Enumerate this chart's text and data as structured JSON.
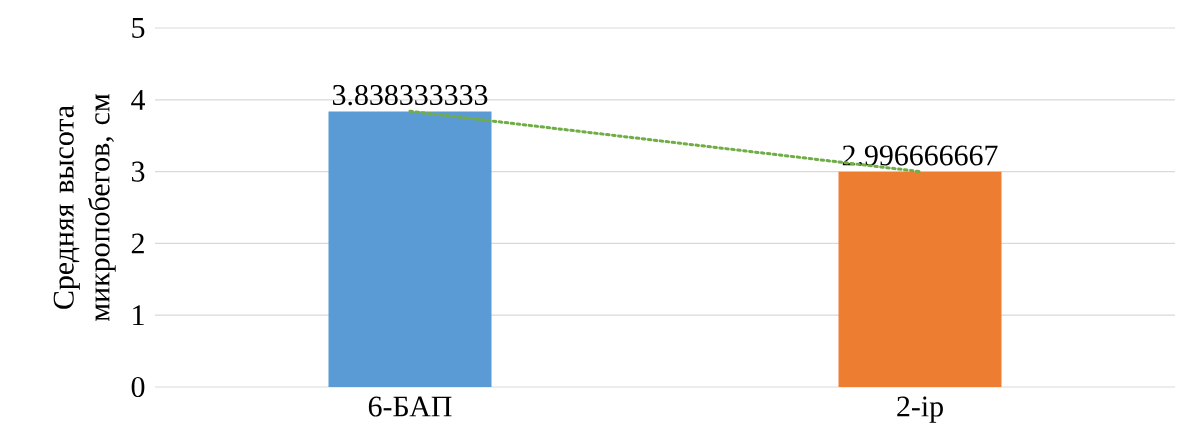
{
  "chart_data": {
    "type": "bar",
    "ylabel": "Средняя высота микропобегов, см",
    "categories": [
      "6-БАП",
      "2-ip"
    ],
    "series": [
      {
        "values": [
          3.838333333,
          2.996666667
        ],
        "colors": [
          "#5b9bd5",
          "#ed7d31"
        ],
        "value_labels": [
          "3.838333333",
          "2.996666667"
        ]
      },
      {
        "type": "line",
        "values": [
          3.84,
          3.0
        ],
        "color": "#70ad47",
        "line_style": "dotted"
      }
    ],
    "ylim": [
      0,
      5
    ],
    "yticks": [
      0,
      1,
      2,
      3,
      4,
      5
    ],
    "grid": "y"
  }
}
